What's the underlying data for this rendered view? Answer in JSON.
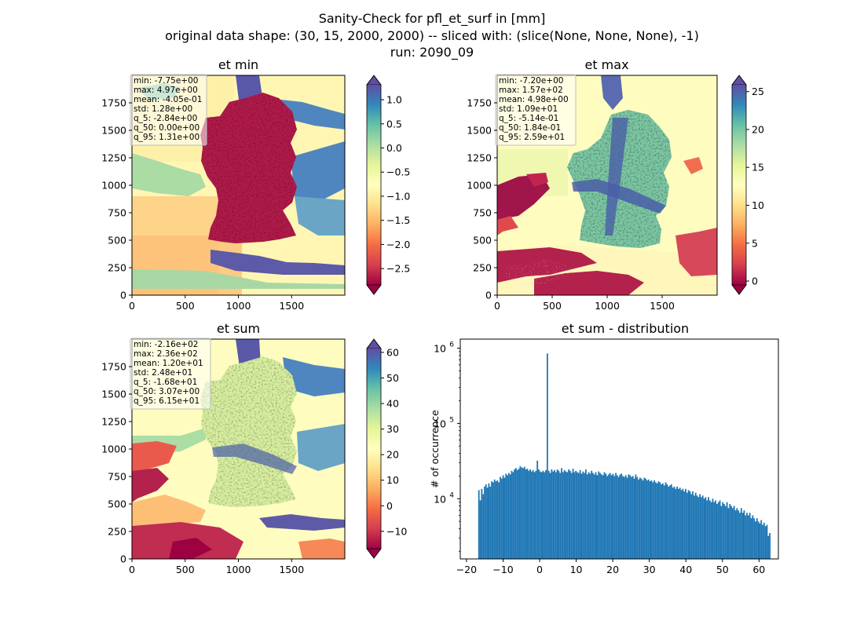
{
  "figure": {
    "title_lines": [
      "Sanity-Check for pfl_et_surf in [mm]",
      "original data shape: (30, 15, 2000, 2000) -- sliced with: (slice(None, None, None), -1)",
      "run: 2090_09"
    ]
  },
  "chart_data": [
    {
      "type": "heatmap",
      "title": "et min",
      "colormap": "Spectral",
      "xlim": [
        0,
        2000
      ],
      "ylim": [
        0,
        2000
      ],
      "xticks": [
        "0",
        "500",
        "1000",
        "1500"
      ],
      "yticks": [
        "0",
        "250",
        "500",
        "750",
        "1000",
        "1250",
        "1500",
        "1750"
      ],
      "colorbar": {
        "range": [
          -2.84,
          1.31
        ],
        "ticks": [
          "1.0",
          "0.5",
          "0.0",
          "−0.5",
          "−1.0",
          "−1.5",
          "−2.0",
          "−2.5"
        ],
        "extend": "both"
      },
      "stats": [
        "min: -7.75e+00",
        "max: 4.97e+00",
        "mean: -4.05e-01",
        "std: 1.28e+00",
        "q_5: -2.84e+00",
        "q_50: 0.00e+00",
        "q_95: 1.31e+00"
      ]
    },
    {
      "type": "heatmap",
      "title": "et max",
      "colormap": "Spectral",
      "xlim": [
        0,
        2000
      ],
      "ylim": [
        0,
        2000
      ],
      "xticks": [
        "0",
        "500",
        "1000",
        "1500"
      ],
      "yticks": [
        "0",
        "250",
        "500",
        "750",
        "1000",
        "1250",
        "1500",
        "1750"
      ],
      "colorbar": {
        "range": [
          -0.514,
          25.9
        ],
        "ticks": [
          "25",
          "20",
          "15",
          "10",
          "5",
          "0"
        ],
        "extend": "both"
      },
      "stats": [
        "min: -7.20e+00",
        "max: 1.57e+02",
        "mean: 4.98e+00",
        "std: 1.09e+01",
        "q_5: -5.14e-01",
        "q_50: 1.84e-01",
        "q_95: 2.59e+01"
      ]
    },
    {
      "type": "heatmap",
      "title": "et sum",
      "colormap": "Spectral",
      "xlim": [
        0,
        2000
      ],
      "ylim": [
        0,
        2000
      ],
      "xticks": [
        "0",
        "500",
        "1000",
        "1500"
      ],
      "yticks": [
        "0",
        "250",
        "500",
        "750",
        "1000",
        "1250",
        "1500",
        "1750"
      ],
      "colorbar": {
        "range": [
          -16.8,
          61.5
        ],
        "ticks": [
          "60",
          "50",
          "40",
          "30",
          "20",
          "10",
          "0",
          "−10"
        ],
        "extend": "both"
      },
      "stats": [
        "min: -2.16e+02",
        "max: 2.36e+02",
        "mean: 1.20e+01",
        "std: 2.48e+01",
        "q_5: -1.68e+01",
        "q_50: 3.07e+00",
        "q_95: 6.15e+01"
      ]
    },
    {
      "type": "bar",
      "title": "et sum - distribution",
      "ylabel": "# of occurrence",
      "yscale": "log",
      "xlim": [
        -21.7,
        65.3
      ],
      "ylim_log10": [
        3.2,
        6.12
      ],
      "xticks": [
        "−20",
        "−10",
        "0",
        "10",
        "20",
        "30",
        "40",
        "50",
        "60"
      ],
      "yticks": [
        {
          "base": "10",
          "exp": "4",
          "value_log10": 4
        },
        {
          "base": "10",
          "exp": "5",
          "value_log10": 5
        },
        {
          "base": "10",
          "exp": "6",
          "value_log10": 6
        }
      ],
      "color": "#1f77b4",
      "bins": {
        "start": -16.8,
        "width": 0.39
      },
      "counts": [
        13000,
        9500,
        13500,
        11500,
        14500,
        15500,
        14000,
        16000,
        14500,
        17000,
        16500,
        18000,
        17000,
        17500,
        16500,
        19500,
        18500,
        20500,
        19000,
        21500,
        20500,
        22000,
        21000,
        23500,
        22500,
        24500,
        25500,
        24000,
        25000,
        27000,
        26000,
        25500,
        26500,
        24500,
        25000,
        23500,
        24500,
        23000,
        24000,
        22500,
        23500,
        32000,
        24500,
        23000,
        22500,
        23500,
        22500,
        24000,
        850000,
        23500,
        22000,
        24500,
        23000,
        24000,
        22500,
        24500,
        23500,
        22000,
        25500,
        22500,
        24000,
        23000,
        22500,
        24500,
        23500,
        22000,
        25000,
        22500,
        23500,
        22500,
        22000,
        24000,
        21500,
        23000,
        22000,
        24500,
        21000,
        22500,
        21500,
        23500,
        22000,
        21000,
        22500,
        20500,
        23000,
        22000,
        21000,
        20500,
        22500,
        21500,
        20000,
        21000,
        22000,
        20500,
        21500,
        20000,
        22000,
        20500,
        19500,
        21000,
        21500,
        20000,
        19500,
        20500,
        19000,
        21000,
        20500,
        19500,
        20000,
        18500,
        21000,
        19500,
        18000,
        19000,
        18500,
        17500,
        19000,
        18500,
        17500,
        18000,
        17000,
        17500,
        16500,
        17500,
        16500,
        16000,
        17000,
        16500,
        15500,
        16000,
        15000,
        16500,
        15500,
        14500,
        15000,
        15500,
        14000,
        14500,
        13500,
        14500,
        13500,
        14000,
        13000,
        13500,
        12500,
        13500,
        12000,
        13000,
        12500,
        11500,
        12500,
        11000,
        12000,
        11000,
        10500,
        11500,
        10500,
        11000,
        10000,
        10500,
        9500,
        10500,
        9500,
        9000,
        10000,
        9000,
        9500,
        8500,
        9000,
        9500,
        8000,
        9000,
        8500,
        8000,
        9000,
        7500,
        8500,
        8000,
        7500,
        8000,
        7000,
        7500,
        7000,
        6500,
        7500,
        6500,
        7000,
        6000,
        6500,
        6000,
        6500,
        5500,
        6000,
        5500,
        5000,
        5500,
        5000,
        4700,
        5200,
        4500,
        4800,
        4300,
        4500,
        3200,
        3500
      ]
    }
  ]
}
